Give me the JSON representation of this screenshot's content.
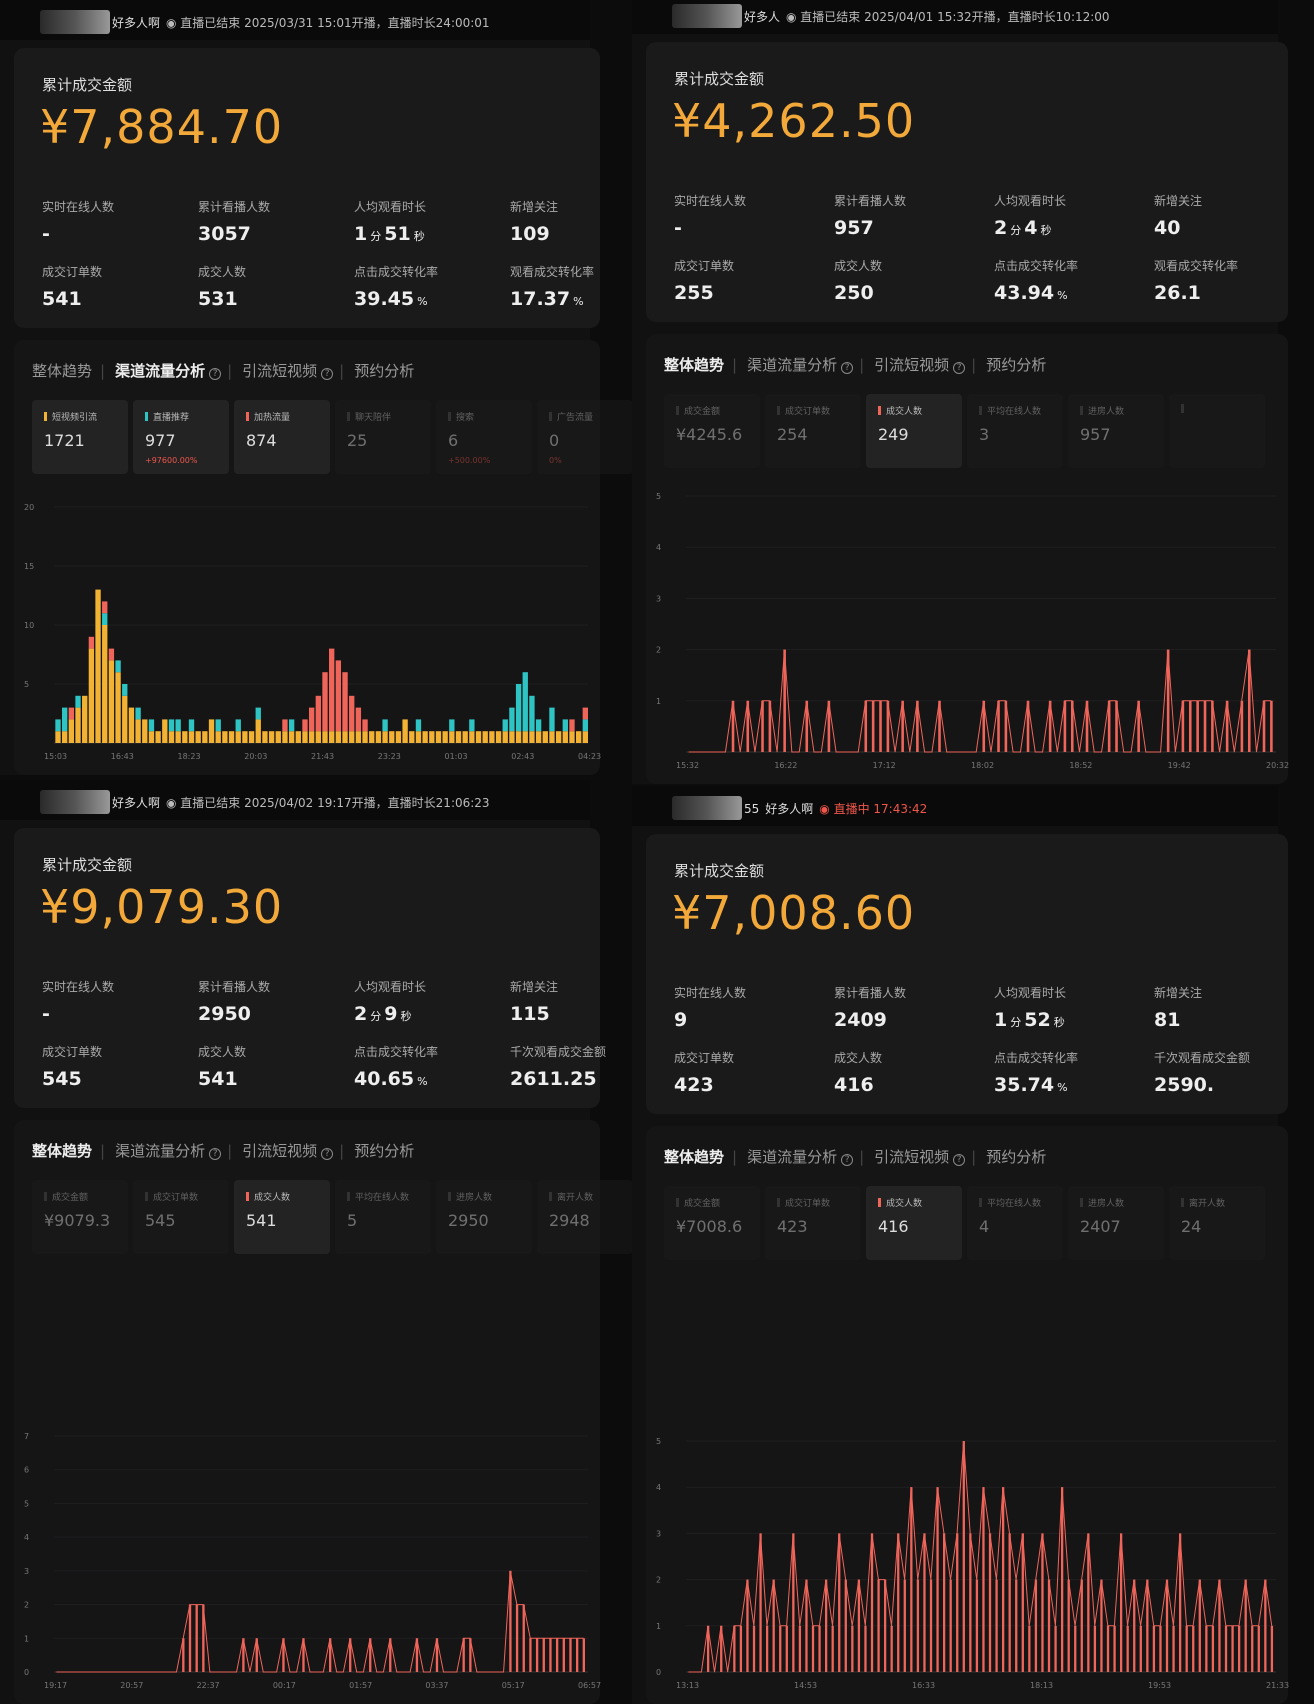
{
  "colors": {
    "amount": "#f3a93a",
    "red": "#f0655a",
    "teal": "#2ec4c4",
    "yellow": "#f2b233"
  },
  "panels": [
    {
      "header": {
        "name": "好多人啊",
        "status": "◉ 直播已结束 2025/03/31 15:01开播，直播时长24:00:01",
        "live": false
      },
      "amount_label": "累计成交金额",
      "amount": "¥7,884.70",
      "metrics": [
        {
          "label": "实时在线人数",
          "value": "-"
        },
        {
          "label": "累计看播人数",
          "value": "3057"
        },
        {
          "label": "人均观看时长",
          "value": "1",
          "unit1": "分",
          "value2": "51",
          "unit2": "秒"
        },
        {
          "label": "新增关注",
          "value": "109"
        },
        {
          "label": "成交订单数",
          "value": "541"
        },
        {
          "label": "成交人数",
          "value": "531"
        },
        {
          "label": "点击成交转化率",
          "value": "39.45",
          "unit1": "%"
        },
        {
          "label": "观看成交转化率",
          "value": "17.37",
          "unit1": "%"
        }
      ],
      "tabs": [
        "整体趋势",
        "渠道流量分析",
        "引流短视频",
        "预约分析"
      ],
      "active_tab": 1,
      "subcards": [
        {
          "label": "短视频引流",
          "value": "1721",
          "color": "#f2b233",
          "on": true
        },
        {
          "label": "直播推荐",
          "value": "977",
          "change": "+97600.00%",
          "color": "#2ec4c4",
          "on": true
        },
        {
          "label": "加热流量",
          "value": "874",
          "color": "#f0655a",
          "on": true
        },
        {
          "label": "聊天陪伴",
          "value": "25"
        },
        {
          "label": "搜索",
          "value": "6",
          "change": "+500.00%"
        },
        {
          "label": "广告流量",
          "value": "0",
          "change": "0%"
        }
      ],
      "chart_data": {
        "type": "bar",
        "stacked": true,
        "ylim": [
          0,
          20
        ],
        "yticks": [
          5,
          10,
          15,
          20
        ],
        "xticks": [
          "15:03",
          "16:43",
          "18:23",
          "20:03",
          "21:43",
          "23:23",
          "01:03",
          "02:43",
          "04:23"
        ],
        "series": [
          {
            "name": "短视频引流",
            "color": "#f2b233",
            "values": [
              1,
              1,
              2,
              3,
              4,
              8,
              13,
              10,
              7,
              6,
              4,
              3,
              2,
              2,
              1,
              1,
              2,
              1,
              1,
              1,
              1,
              1,
              1,
              2,
              1,
              1,
              1,
              1,
              1,
              1,
              2,
              1,
              1,
              1,
              1,
              1,
              1,
              1,
              1,
              1,
              1,
              1,
              1,
              1,
              1,
              1,
              1,
              1,
              1,
              1,
              1,
              1,
              2,
              1,
              1,
              1,
              1,
              1,
              1,
              1,
              1,
              1,
              1,
              1,
              1,
              1,
              1,
              1,
              1,
              1,
              1,
              1,
              1,
              1,
              1,
              1,
              1,
              1,
              1,
              1
            ]
          },
          {
            "name": "直播推荐",
            "color": "#2ec4c4",
            "values": [
              1,
              2,
              0,
              1,
              0,
              0,
              0,
              1,
              0,
              1,
              1,
              0,
              1,
              0,
              1,
              0,
              0,
              1,
              1,
              0,
              1,
              0,
              0,
              0,
              1,
              0,
              0,
              1,
              0,
              0,
              1,
              0,
              0,
              0,
              0,
              1,
              0,
              0,
              0,
              0,
              0,
              0,
              0,
              0,
              0,
              0,
              0,
              0,
              0,
              1,
              0,
              0,
              0,
              0,
              1,
              0,
              0,
              0,
              0,
              1,
              0,
              0,
              1,
              0,
              0,
              0,
              0,
              1,
              2,
              4,
              5,
              3,
              1,
              0,
              2,
              0,
              1,
              0,
              0,
              1
            ]
          },
          {
            "name": "加热流量",
            "color": "#f0655a",
            "values": [
              0,
              0,
              1,
              0,
              0,
              1,
              0,
              1,
              1,
              0,
              0,
              0,
              0,
              0,
              0,
              0,
              0,
              0,
              0,
              0,
              0,
              0,
              0,
              0,
              0,
              0,
              0,
              0,
              0,
              0,
              0,
              0,
              0,
              0,
              1,
              0,
              0,
              1,
              2,
              3,
              5,
              7,
              6,
              5,
              3,
              2,
              1,
              0,
              0,
              0,
              0,
              0,
              0,
              0,
              0,
              0,
              0,
              0,
              0,
              0,
              0,
              0,
              0,
              0,
              0,
              0,
              0,
              0,
              0,
              0,
              0,
              0,
              0,
              0,
              0,
              0,
              0,
              1,
              0,
              1
            ]
          }
        ]
      }
    },
    {
      "header": {
        "name": "好多人",
        "status": "◉ 直播已结束 2025/04/01 15:32开播，直播时长10:12:00",
        "live": false
      },
      "amount_label": "累计成交金额",
      "amount": "¥4,262.50",
      "metrics": [
        {
          "label": "实时在线人数",
          "value": "-"
        },
        {
          "label": "累计看播人数",
          "value": "957"
        },
        {
          "label": "人均观看时长",
          "value": "2",
          "unit1": "分",
          "value2": "4",
          "unit2": "秒"
        },
        {
          "label": "新增关注",
          "value": "40"
        },
        {
          "label": "成交订单数",
          "value": "255"
        },
        {
          "label": "成交人数",
          "value": "250"
        },
        {
          "label": "点击成交转化率",
          "value": "43.94",
          "unit1": "%"
        },
        {
          "label": "观看成交转化率",
          "value": "26.1"
        }
      ],
      "tabs": [
        "整体趋势",
        "渠道流量分析",
        "引流短视频",
        "预约分析"
      ],
      "active_tab": 0,
      "subcards": [
        {
          "label": "成交金额",
          "value": "¥4245.6"
        },
        {
          "label": "成交订单数",
          "value": "254"
        },
        {
          "label": "成交人数",
          "value": "249",
          "color": "#f0655a",
          "on": true
        },
        {
          "label": "平均在线人数",
          "value": "3"
        },
        {
          "label": "进房人数",
          "value": "957"
        },
        {
          "label": "",
          "value": ""
        }
      ],
      "chart_data": {
        "type": "bar",
        "ylim": [
          0,
          5
        ],
        "yticks": [
          1,
          2,
          3,
          4,
          5
        ],
        "xticks": [
          "15:32",
          "16:22",
          "17:12",
          "18:02",
          "18:52",
          "19:42",
          "20:32"
        ],
        "series": [
          {
            "name": "成交人数",
            "color": "#f0655a",
            "values": [
              0,
              0,
              0,
              0,
              0,
              0,
              1,
              0,
              1,
              0,
              1,
              1,
              0,
              2,
              0,
              0,
              1,
              0,
              0,
              1,
              0,
              0,
              0,
              0,
              1,
              1,
              1,
              1,
              0,
              1,
              0,
              1,
              0,
              0,
              1,
              0,
              0,
              0,
              0,
              0,
              1,
              0,
              1,
              1,
              0,
              0,
              1,
              0,
              0,
              1,
              0,
              1,
              1,
              0,
              1,
              0,
              0,
              1,
              1,
              0,
              0,
              1,
              0,
              0,
              0,
              2,
              0,
              1,
              1,
              1,
              1,
              1,
              0,
              1,
              0,
              1,
              2,
              0,
              1,
              1
            ]
          }
        ]
      }
    },
    {
      "header": {
        "name": "好多人啊",
        "status": "◉ 直播已结束 2025/04/02 19:17开播，直播时长21:06:23",
        "live": false
      },
      "amount_label": "累计成交金额",
      "amount": "¥9,079.30",
      "metrics": [
        {
          "label": "实时在线人数",
          "value": "-"
        },
        {
          "label": "累计看播人数",
          "value": "2950"
        },
        {
          "label": "人均观看时长",
          "value": "2",
          "unit1": "分",
          "value2": "9",
          "unit2": "秒"
        },
        {
          "label": "新增关注",
          "value": "115"
        },
        {
          "label": "成交订单数",
          "value": "545"
        },
        {
          "label": "成交人数",
          "value": "541"
        },
        {
          "label": "点击成交转化率",
          "value": "40.65",
          "unit1": "%"
        },
        {
          "label": "千次观看成交金额",
          "value": "2611.25"
        }
      ],
      "tabs": [
        "整体趋势",
        "渠道流量分析",
        "引流短视频",
        "预约分析"
      ],
      "active_tab": 0,
      "subcards": [
        {
          "label": "成交金额",
          "value": "¥9079.3"
        },
        {
          "label": "成交订单数",
          "value": "545"
        },
        {
          "label": "成交人数",
          "value": "541",
          "color": "#f0655a",
          "on": true
        },
        {
          "label": "平均在线人数",
          "value": "5"
        },
        {
          "label": "进房人数",
          "value": "2950"
        },
        {
          "label": "离开人数",
          "value": "2948"
        }
      ],
      "chart_data": {
        "type": "bar",
        "ylim": [
          0,
          7
        ],
        "yticks": [
          0,
          1,
          2,
          3,
          4,
          5,
          6,
          7
        ],
        "xticks": [
          "19:17",
          "20:57",
          "22:37",
          "00:17",
          "01:57",
          "03:37",
          "05:17",
          "06:57"
        ],
        "series": [
          {
            "name": "成交人数",
            "color": "#f0655a",
            "values": [
              0,
              0,
              0,
              0,
              0,
              0,
              0,
              0,
              0,
              0,
              0,
              0,
              0,
              0,
              0,
              0,
              0,
              0,
              0,
              1,
              2,
              2,
              2,
              0,
              0,
              0,
              0,
              0,
              1,
              0,
              1,
              0,
              0,
              0,
              1,
              0,
              0,
              1,
              0,
              0,
              0,
              1,
              0,
              0,
              1,
              0,
              0,
              1,
              0,
              0,
              1,
              0,
              0,
              0,
              1,
              0,
              0,
              1,
              0,
              0,
              0,
              1,
              1,
              0,
              0,
              0,
              0,
              0,
              3,
              2,
              2,
              1,
              1,
              1,
              1,
              1,
              1,
              1,
              1,
              1
            ]
          }
        ]
      }
    },
    {
      "header": {
        "prefix": "55",
        "name": "好多人啊",
        "status": "◉ 直播中 17:43:42",
        "live": true
      },
      "amount_label": "累计成交金额",
      "amount": "¥7,008.60",
      "metrics": [
        {
          "label": "实时在线人数",
          "value": "9"
        },
        {
          "label": "累计看播人数",
          "value": "2409"
        },
        {
          "label": "人均观看时长",
          "value": "1",
          "unit1": "分",
          "value2": "52",
          "unit2": "秒"
        },
        {
          "label": "新增关注",
          "value": "81"
        },
        {
          "label": "成交订单数",
          "value": "423"
        },
        {
          "label": "成交人数",
          "value": "416"
        },
        {
          "label": "点击成交转化率",
          "value": "35.74",
          "unit1": "%"
        },
        {
          "label": "千次观看成交金额",
          "value": "2590."
        }
      ],
      "tabs": [
        "整体趋势",
        "渠道流量分析",
        "引流短视频",
        "预约分析"
      ],
      "active_tab": 0,
      "subcards": [
        {
          "label": "成交金额",
          "value": "¥7008.6"
        },
        {
          "label": "成交订单数",
          "value": "423"
        },
        {
          "label": "成交人数",
          "value": "416",
          "color": "#f0655a",
          "on": true
        },
        {
          "label": "平均在线人数",
          "value": "4"
        },
        {
          "label": "进房人数",
          "value": "2407"
        },
        {
          "label": "离开人数",
          "value": "24"
        }
      ],
      "chart_data": {
        "type": "bar",
        "ylim": [
          0,
          5
        ],
        "yticks": [
          0,
          1,
          2,
          3,
          4,
          5
        ],
        "xticks": [
          "13:13",
          "14:53",
          "16:33",
          "18:13",
          "19:53",
          "21:33"
        ],
        "series": [
          {
            "name": "成交人数",
            "color": "#f0655a",
            "values": [
              0,
              0,
              0,
              1,
              0,
              1,
              0,
              1,
              1,
              2,
              1,
              3,
              1,
              2,
              1,
              1,
              3,
              1,
              2,
              1,
              1,
              2,
              1,
              3,
              2,
              1,
              2,
              1,
              3,
              2,
              2,
              1,
              3,
              2,
              4,
              2,
              3,
              2,
              4,
              3,
              2,
              3,
              5,
              3,
              2,
              4,
              3,
              2,
              4,
              3,
              2,
              3,
              1,
              2,
              3,
              2,
              1,
              4,
              2,
              1,
              2,
              3,
              1,
              2,
              1,
              1,
              3,
              1,
              2,
              1,
              2,
              1,
              1,
              2,
              1,
              3,
              1,
              1,
              2,
              1,
              1,
              2,
              1,
              1,
              1,
              2,
              1,
              1,
              2,
              1
            ]
          }
        ]
      }
    }
  ]
}
